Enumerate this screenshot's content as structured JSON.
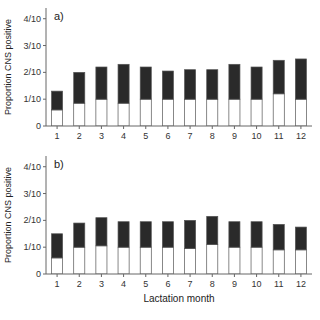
{
  "chart_data": [
    {
      "type": "bar",
      "title": "a)",
      "stacked": true,
      "grid": false,
      "ylabel": "Proportion CNS positive",
      "categories": [
        "1",
        "2",
        "3",
        "4",
        "5",
        "6",
        "7",
        "8",
        "9",
        "10",
        "11",
        "12"
      ],
      "series": [
        {
          "color": "#ffffff",
          "values": [
            0.06,
            0.085,
            0.1,
            0.085,
            0.1,
            0.1,
            0.1,
            0.1,
            0.1,
            0.1,
            0.12,
            0.1
          ]
        },
        {
          "color": "#2a2a2a",
          "values": [
            0.07,
            0.115,
            0.12,
            0.145,
            0.12,
            0.105,
            0.11,
            0.11,
            0.13,
            0.12,
            0.125,
            0.15
          ]
        }
      ],
      "ylim": [
        0,
        0.44
      ],
      "yticks": [
        0,
        {
          "value": 0.1,
          "label": "1/10"
        },
        {
          "value": 0.2,
          "label": "2/10"
        },
        {
          "value": 0.3,
          "label": "3/10"
        },
        {
          "value": 0.4,
          "label": "4/10"
        }
      ]
    },
    {
      "type": "bar",
      "title": "b)",
      "stacked": true,
      "grid": false,
      "ylabel": "Proportion CNS positive",
      "xlabel": "Lactation month",
      "categories": [
        "1",
        "2",
        "3",
        "4",
        "5",
        "6",
        "7",
        "8",
        "9",
        "10",
        "11",
        "12"
      ],
      "series": [
        {
          "color": "#ffffff",
          "values": [
            0.06,
            0.1,
            0.105,
            0.1,
            0.1,
            0.1,
            0.095,
            0.11,
            0.1,
            0.1,
            0.09,
            0.09
          ]
        },
        {
          "color": "#2a2a2a",
          "values": [
            0.09,
            0.09,
            0.105,
            0.095,
            0.095,
            0.095,
            0.105,
            0.105,
            0.095,
            0.095,
            0.095,
            0.085
          ]
        }
      ],
      "ylim": [
        0,
        0.44
      ],
      "yticks": [
        0,
        {
          "value": 0.1,
          "label": "1/10"
        },
        {
          "value": 0.2,
          "label": "2/10"
        },
        {
          "value": 0.3,
          "label": "3/10"
        },
        {
          "value": 0.4,
          "label": "4/10"
        }
      ]
    }
  ]
}
